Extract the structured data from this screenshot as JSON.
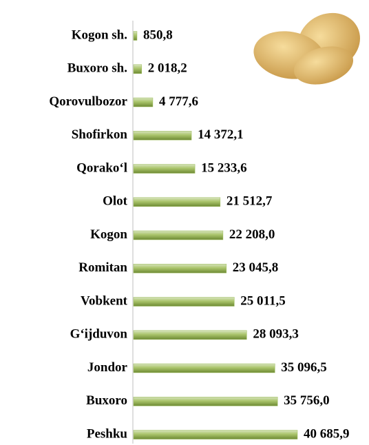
{
  "chart_data": {
    "type": "bar",
    "orientation": "horizontal",
    "categories": [
      "Kogon sh.",
      "Buxoro sh.",
      "Qorovulbozor",
      "Shofirkon",
      "Qorako‘l",
      "Olot",
      "Kogon",
      "Romitan",
      "Vobkent",
      "G‘ijduvon",
      "Jondor",
      "Buxoro",
      "Peshku"
    ],
    "values": [
      850.8,
      2018.2,
      4777.6,
      14372.1,
      15233.6,
      21512.7,
      22208.0,
      23045.8,
      25011.5,
      28093.3,
      35096.5,
      35756.0,
      40685.9
    ],
    "value_labels": [
      "850,8",
      "2 018,2",
      "4 777,6",
      "14 372,1",
      "15 233,6",
      "21 512,7",
      "22 208,0",
      "23 045,8",
      "25 011,5",
      "28 093,3",
      "35 096,5",
      "35 756,0",
      "40 685,9"
    ],
    "color": "#9bbb59"
  }
}
